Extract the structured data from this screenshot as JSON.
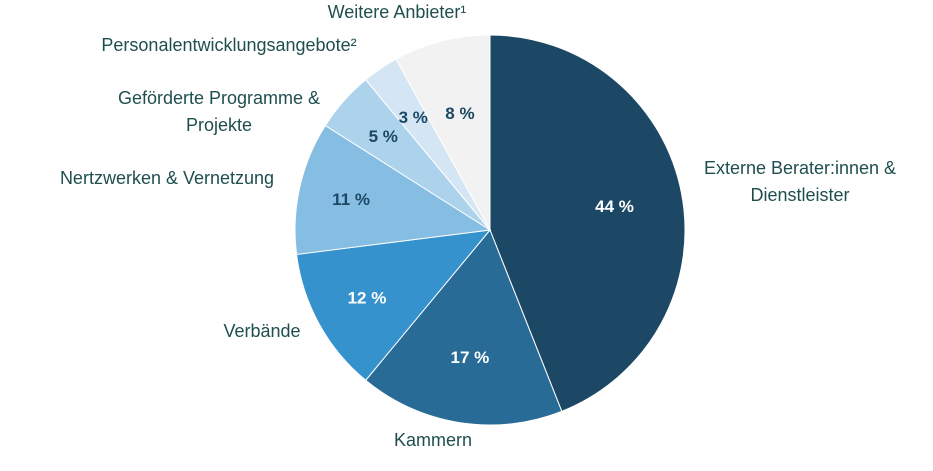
{
  "chart_data": {
    "type": "pie",
    "categories": [
      "Externe Berater:innen & Dienstleister",
      "Kammern",
      "Verbände",
      "Nertzwerken & Vernetzung",
      "Geförderte Programme & Projekte",
      "Personalentwicklungsangebote²",
      "Weitere Anbieter¹"
    ],
    "values": [
      44,
      17,
      12,
      11,
      5,
      3,
      8
    ],
    "value_labels": [
      "44 %",
      "17 %",
      "12 %",
      "11 %",
      "5 %",
      "3 %",
      "8 %"
    ],
    "colors": [
      "#1c4866",
      "#286b96",
      "#3592cd",
      "#86bde2",
      "#acd2ec",
      "#d4e6f3",
      "#f2f2f2"
    ],
    "label_colors": [
      "#ffffff",
      "#ffffff",
      "#ffffff",
      "#1c4866",
      "#1c4866",
      "#1c4866",
      "#1c4866"
    ],
    "start_angle_deg": 0,
    "direction": "clockwise",
    "legend": "none"
  }
}
